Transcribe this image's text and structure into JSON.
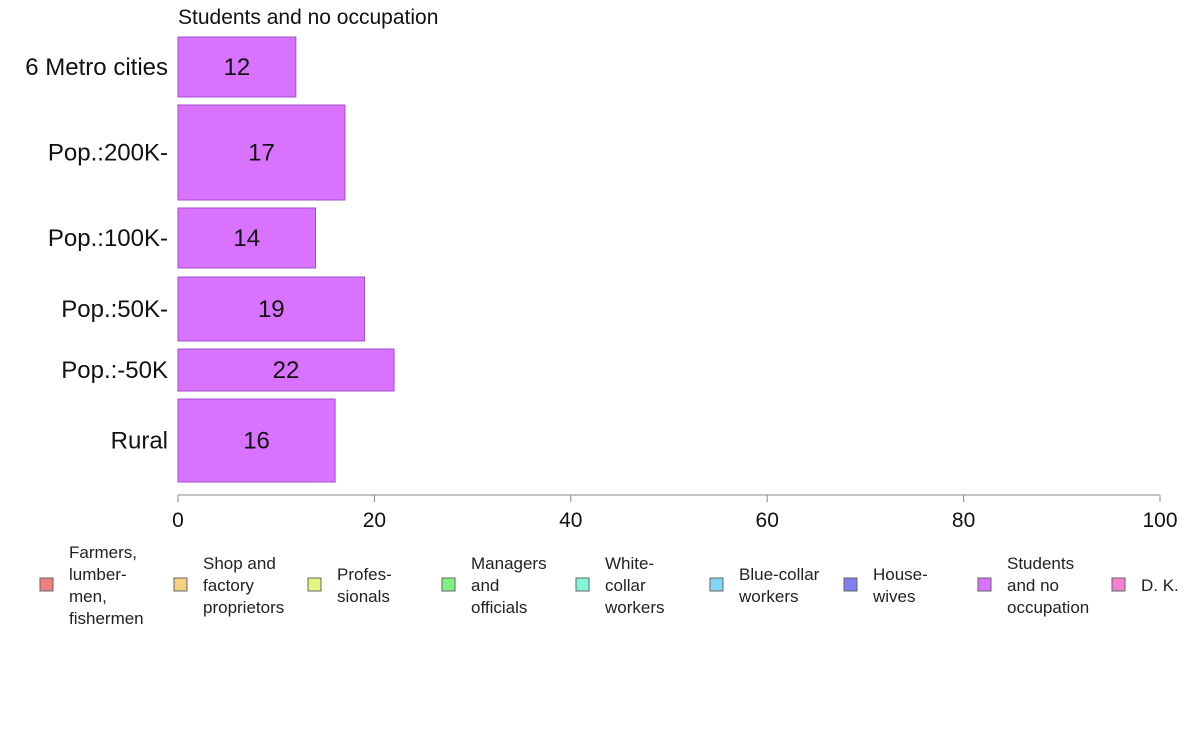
{
  "chart_data": {
    "type": "bar",
    "orientation": "horizontal",
    "title": "Students and no occupation",
    "categories": [
      "6 Metro cities",
      "Pop.:200K-",
      "Pop.:100K-",
      "Pop.:50K-",
      "Pop.:-50K",
      "Rural"
    ],
    "series": [
      {
        "name": "Students and no occupation",
        "values": [
          12,
          17,
          14,
          19,
          22,
          16
        ],
        "color": "#d973ff"
      }
    ],
    "data_labels": [
      "12",
      "17",
      "14",
      "19",
      "22",
      "16"
    ],
    "xlim": [
      0,
      100
    ],
    "x_ticks": [
      "0",
      "20",
      "40",
      "60",
      "80",
      "100"
    ],
    "grid": false,
    "legend": {
      "placement": "bottom",
      "items": [
        {
          "label": [
            "Farmers,",
            "lumber-",
            "men,",
            "fishermen"
          ],
          "color": "#f08080"
        },
        {
          "label": [
            "Shop and",
            "factory",
            "proprietors"
          ],
          "color": "#f5d080"
        },
        {
          "label": [
            "Profes-",
            "sionals"
          ],
          "color": "#e6f580"
        },
        {
          "label": [
            "Managers",
            "and",
            "officials"
          ],
          "color": "#80f080"
        },
        {
          "label": [
            "White-",
            "collar",
            "workers"
          ],
          "color": "#80f5d8"
        },
        {
          "label": [
            "Blue-collar",
            "workers"
          ],
          "color": "#80d8f5"
        },
        {
          "label": [
            "House-",
            "wives"
          ],
          "color": "#8080f0"
        },
        {
          "label": [
            "Students",
            "and no",
            "occupation"
          ],
          "color": "#d973ff"
        },
        {
          "label": [
            "D. K."
          ],
          "color": "#f580d0"
        }
      ]
    }
  }
}
